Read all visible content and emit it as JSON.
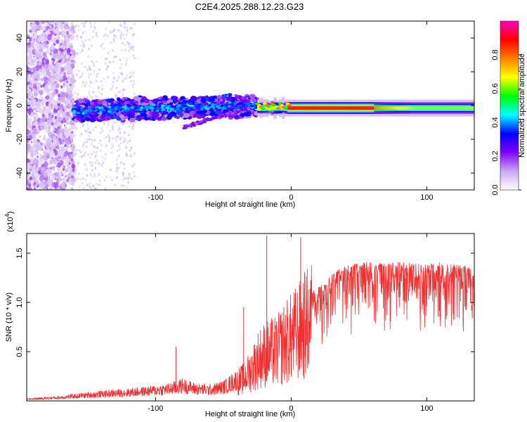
{
  "title": "C2E4.2025.288.12.23.G23",
  "chart_data": [
    {
      "type": "heatmap",
      "name": "spectrogram",
      "xlabel": "Height of straight line (km)",
      "ylabel": "Frequency (Hz)",
      "xlim": [
        -195,
        135
      ],
      "ylim": [
        -50,
        50
      ],
      "xticks": [
        -100,
        0,
        100
      ],
      "yticks": [
        -40,
        -20,
        0,
        20,
        40
      ],
      "colorbar": {
        "label": "Normalized spectral amplitude",
        "range": [
          0,
          1
        ],
        "ticks": [
          0.0,
          0.2,
          0.4,
          0.6,
          0.8
        ],
        "colormap": [
          "#ffffff",
          "#c8a8f0",
          "#8000ff",
          "#0000ff",
          "#00ffff",
          "#00ff00",
          "#ffff00",
          "#ff8000",
          "#ff0000",
          "#ff00c0"
        ]
      },
      "features": {
        "noise_region_x": [
          -195,
          -160
        ],
        "scatter_region_x": [
          -160,
          -25
        ],
        "carrier_line_x": [
          -25,
          135
        ],
        "carrier_frequency_hz": -1.5,
        "peak_amplitude_x": [
          -5,
          60
        ]
      }
    },
    {
      "type": "line",
      "name": "snr",
      "xlabel": "Height of straight line (km)",
      "ylabel": "SNR (10 * v/v)",
      "yscale_label": "(x10",
      "yscale_exponent": "4",
      "xlim": [
        -195,
        135
      ],
      "ylim": [
        0,
        1.7
      ],
      "xticks": [
        -100,
        0,
        100
      ],
      "yticks": [
        0.5,
        1.0,
        1.5
      ],
      "color": "#ee3030",
      "envelope": {
        "x": [
          -195,
          -170,
          -150,
          -130,
          -110,
          -90,
          -80,
          -70,
          -60,
          -50,
          -40,
          -35,
          -30,
          -25,
          -20,
          -15,
          -10,
          -5,
          0,
          5,
          10,
          20,
          30,
          40,
          50,
          60,
          70,
          80,
          90,
          100,
          110,
          120,
          135
        ],
        "y": [
          0.02,
          0.04,
          0.07,
          0.09,
          0.11,
          0.14,
          0.18,
          0.14,
          0.13,
          0.16,
          0.25,
          0.3,
          0.4,
          0.55,
          0.62,
          0.65,
          0.68,
          0.78,
          0.85,
          0.92,
          1.02,
          1.18,
          1.3,
          1.38,
          1.42,
          1.43,
          1.41,
          1.42,
          1.43,
          1.41,
          1.42,
          1.4,
          1.38
        ]
      },
      "spikes": [
        {
          "x": -85,
          "y": 0.55
        },
        {
          "x": -35,
          "y": 0.95
        },
        {
          "x": -18,
          "y": 1.68
        },
        {
          "x": 7,
          "y": 1.66
        }
      ]
    }
  ]
}
